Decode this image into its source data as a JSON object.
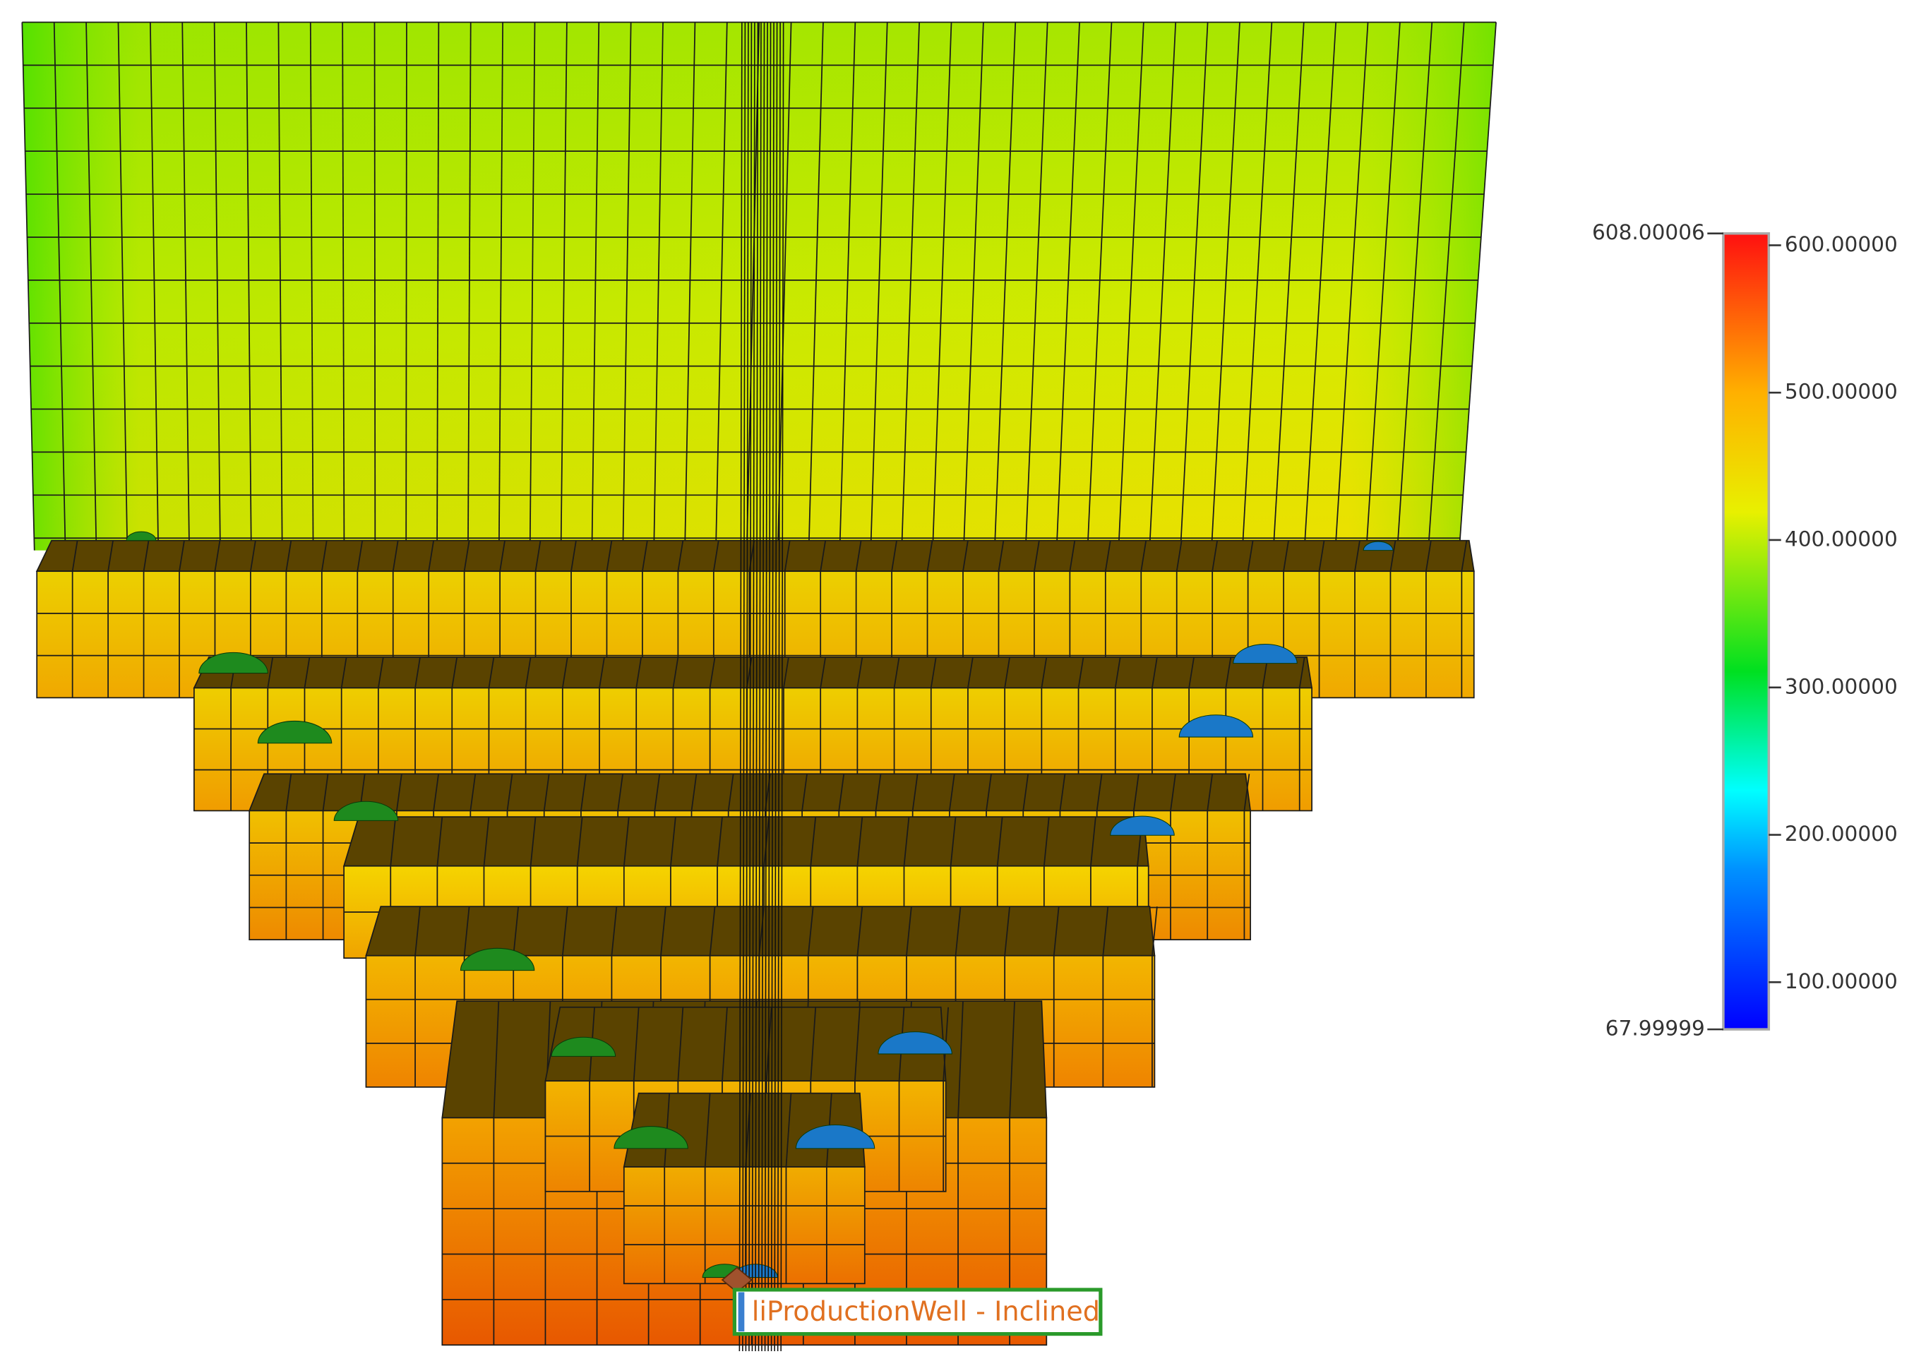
{
  "color_legend": {
    "min": 67.99999,
    "max": 608.00006,
    "ticks": [
      {
        "value": 600,
        "label": "600.00000"
      },
      {
        "value": 500,
        "label": "500.00000"
      },
      {
        "value": 400,
        "label": "400.00000"
      },
      {
        "value": 300,
        "label": "300.00000"
      },
      {
        "value": 200,
        "label": "200.00000"
      },
      {
        "value": 100,
        "label": "100.00000"
      }
    ]
  },
  "well_label": "liProductionWell - Inclined"
}
